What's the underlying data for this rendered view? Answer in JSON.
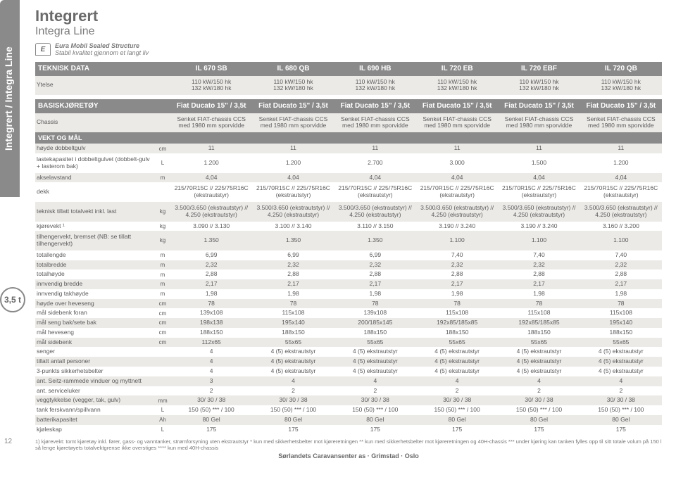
{
  "sideTab": "Integrert / Integra Line",
  "pageNumber": "12",
  "title": "Integrert",
  "subtitle": "Integra Line",
  "logoLetter": "E",
  "taglineBrand": "Eura Mobil Sealed Structure",
  "tagline": "Stabil kvalitet gjennom et langt liv",
  "weightBadge": "3,5 t",
  "headers": {
    "teknisk": "TEKNISK DATA",
    "models": [
      "IL 670 SB",
      "IL 680 QB",
      "IL 690 HB",
      "IL 720 EB",
      "IL 720 EBF",
      "IL 720 QB"
    ]
  },
  "rows": [
    {
      "k": "ytelse",
      "label": "Ytelse",
      "unit": "",
      "vals": [
        "110 kW/150 hk\n132 kW/180 hk",
        "110 kW/150 hk\n132 kW/180 hk",
        "110 kW/150 hk\n132 kW/180 hk",
        "110 kW/150 hk\n132 kW/180 hk",
        "110 kW/150 hk\n132 kW/180 hk",
        "110 kW/150 hk\n132 kW/180 hk"
      ],
      "class": "alt tall"
    },
    {
      "k": "sep1",
      "sep": true
    },
    {
      "k": "basis",
      "label": "BASISKJØRETØY",
      "unit": "",
      "vals": [
        "Fiat Ducato 15\" / 3,5t",
        "Fiat Ducato 15\" / 3,5t",
        "Fiat Ducato 15\" / 3,5t",
        "Fiat Ducato 15\" / 3,5t",
        "Fiat Ducato 15\" / 3,5t",
        "Fiat Ducato 15\" / 3,5t"
      ],
      "class": "hdr"
    },
    {
      "k": "chassis",
      "label": "Chassis",
      "unit": "",
      "vals": [
        "Senket FIAT-chassis CCS med 1980 mm sporvidde",
        "Senket FIAT-chassis CCS med 1980 mm sporvidde",
        "Senket FIAT-chassis CCS med 1980 mm sporvidde",
        "Senket FIAT-chassis CCS med 1980 mm sporvidde",
        "Senket FIAT-chassis CCS med 1980 mm sporvidde",
        "Senket FIAT-chassis CCS med 1980 mm sporvidde"
      ],
      "class": "alt tall"
    },
    {
      "k": "vekt",
      "label": "VEKT OG MÅL",
      "section": true
    },
    {
      "k": "hoyde_dg",
      "label": "høyde dobbeltgulv",
      "unit": "cm",
      "vals": [
        "11",
        "11",
        "11",
        "11",
        "11",
        "11"
      ],
      "class": "alt"
    },
    {
      "k": "lastekap",
      "label": "lastekapasitet i dobbeltgulvet (dobbelt-gulv + lasterom bak)",
      "unit": "L",
      "vals": [
        "1.200",
        "1.200",
        "2.700",
        "3.000",
        "1.500",
        "1.200"
      ],
      "class": "plain tall"
    },
    {
      "k": "aksel",
      "label": "akselavstand",
      "unit": "m",
      "vals": [
        "4,04",
        "4,04",
        "4,04",
        "4,04",
        "4,04",
        "4,04"
      ],
      "class": "alt"
    },
    {
      "k": "dekk",
      "label": "dekk",
      "unit": "",
      "vals": [
        "215/70R15C // 225/75R16C (ekstrautstyr)",
        "215/70R15C // 225/75R16C (ekstrautstyr)",
        "215/70R15C // 225/75R16C (ekstrautstyr)",
        "215/70R15C // 225/75R16C (ekstrautstyr)",
        "215/70R15C // 225/75R16C (ekstrautstyr)",
        "215/70R15C // 225/75R16C (ekstrautstyr)"
      ],
      "class": "plain tall"
    },
    {
      "k": "tekn_tot",
      "label": "teknisk tillatt totalvekt inkl. last",
      "unit": "kg",
      "vals": [
        "3.500/3.650 (ekstrautstyr) // 4.250 (ekstrautstyr)",
        "3.500/3.650 (ekstrautstyr) // 4.250 (ekstrautstyr)",
        "3.500/3.650 (ekstrautstyr) // 4.250 (ekstrautstyr)",
        "3.500/3.650 (ekstrautstyr) // 4.250 (ekstrautstyr)",
        "3.500/3.650 (ekstrautstyr) // 4.250 (ekstrautstyr)",
        "3.500/3.650 (ekstrautstyr) // 4.250 (ekstrautstyr)"
      ],
      "class": "alt tall"
    },
    {
      "k": "kjorevekt",
      "label": "kjørevekt ¹",
      "unit": "kg",
      "vals": [
        "3.090 // 3.130",
        "3.100 // 3.140",
        "3.110 // 3.150",
        "3.190 // 3.240",
        "3.190 // 3.240",
        "3.160 // 3.200"
      ],
      "class": "plain"
    },
    {
      "k": "tilh",
      "label": "tilhengervekt, bremset (NB: se tillatt tilhengervekt)",
      "unit": "kg",
      "vals": [
        "1.350",
        "1.350",
        "1.350",
        "1.100",
        "1.100",
        "1.100"
      ],
      "class": "alt tall"
    },
    {
      "k": "totlen",
      "label": "totallengde",
      "unit": "m",
      "vals": [
        "6,99",
        "6,99",
        "6,99",
        "7,40",
        "7,40",
        "7,40"
      ],
      "class": "plain"
    },
    {
      "k": "totbre",
      "label": "totalbredde",
      "unit": "m",
      "vals": [
        "2,32",
        "2,32",
        "2,32",
        "2,32",
        "2,32",
        "2,32"
      ],
      "class": "alt"
    },
    {
      "k": "tothoy",
      "label": "totalhøyde",
      "unit": "m",
      "vals": [
        "2,88",
        "2,88",
        "2,88",
        "2,88",
        "2,88",
        "2,88"
      ],
      "class": "plain"
    },
    {
      "k": "innbre",
      "label": "innvendig bredde",
      "unit": "m",
      "vals": [
        "2,17",
        "2,17",
        "2,17",
        "2,17",
        "2,17",
        "2,17"
      ],
      "class": "alt"
    },
    {
      "k": "inntak",
      "label": "innvendig takhøyde",
      "unit": "m",
      "vals": [
        "1,98",
        "1,98",
        "1,98",
        "1,98",
        "1,98",
        "1,98"
      ],
      "class": "plain"
    },
    {
      "k": "heveseng",
      "label": "høyde over heveseng",
      "unit": "cm",
      "vals": [
        "78",
        "78",
        "78",
        "78",
        "78",
        "78"
      ],
      "class": "alt"
    },
    {
      "k": "sideforan",
      "label": "mål sidebenk foran",
      "unit": "cm",
      "vals": [
        "139x108",
        "115x108",
        "139x108",
        "115x108",
        "115x108",
        "115x108"
      ],
      "class": "plain"
    },
    {
      "k": "sengbak",
      "label": "mål seng bak/sete bak",
      "unit": "cm",
      "vals": [
        "198x138",
        "195x140",
        "200/185x145",
        "192x85/185x85",
        "192x85/185x85",
        "195x140"
      ],
      "class": "alt"
    },
    {
      "k": "heveseng2",
      "label": "mål heveseng",
      "unit": "cm",
      "vals": [
        "188x150",
        "188x150",
        "188x150",
        "188x150",
        "188x150",
        "188x150"
      ],
      "class": "plain"
    },
    {
      "k": "sidebenk",
      "label": "mål sidebenk",
      "unit": "cm",
      "vals": [
        "112x65",
        "55x65",
        "55x65",
        "55x65",
        "55x65",
        "55x65"
      ],
      "class": "alt"
    },
    {
      "k": "senger",
      "label": "senger",
      "unit": "",
      "vals": [
        "4",
        "4 (5) ekstrautstyr",
        "4 (5) ekstrautstyr",
        "4 (5) ekstrautstyr",
        "4 (5) ekstrautstyr",
        "4 (5) ekstrautstyr"
      ],
      "class": "plain"
    },
    {
      "k": "pers",
      "label": "tillatt antall personer",
      "unit": "",
      "vals": [
        "4",
        "4 (5) ekstrautstyr",
        "4 (5) ekstrautstyr",
        "4 (5) ekstrautstyr",
        "4 (5) ekstrautstyr",
        "4 (5) ekstrautstyr"
      ],
      "class": "alt"
    },
    {
      "k": "3pkt",
      "label": "3-punkts sikkerhetsbelter",
      "unit": "",
      "vals": [
        "4",
        "4 (5) ekstrautstyr",
        "4 (5) ekstrautstyr",
        "4 (5) ekstrautstyr",
        "4 (5) ekstrautstyr",
        "4 (5) ekstrautstyr"
      ],
      "class": "plain"
    },
    {
      "k": "seitz",
      "label": "ant. Seitz-rammede vinduer og myttnett",
      "unit": "",
      "vals": [
        "3",
        "4",
        "4",
        "4",
        "4",
        "4"
      ],
      "class": "alt"
    },
    {
      "k": "serv",
      "label": "ant. serviceluker",
      "unit": "",
      "vals": [
        "2",
        "2",
        "2",
        "2",
        "2",
        "2"
      ],
      "class": "plain"
    },
    {
      "k": "vegg",
      "label": "veggtykkelse (vegger, tak, gulv)",
      "unit": "mm",
      "vals": [
        "30/ 30 / 38",
        "30/ 30 / 38",
        "30/ 30 / 38",
        "30/ 30 / 38",
        "30/ 30 / 38",
        "30/ 30 / 38"
      ],
      "class": "alt"
    },
    {
      "k": "tank",
      "label": "tank ferskvann/spillvann",
      "unit": "L",
      "vals": [
        "150 (50) *** / 100",
        "150 (50) *** / 100",
        "150 (50) *** / 100",
        "150 (50) *** / 100",
        "150 (50) *** / 100",
        "150 (50) *** / 100"
      ],
      "class": "plain"
    },
    {
      "k": "batt",
      "label": "batterikapasitet",
      "unit": "Ah",
      "vals": [
        "80 Gel",
        "80 Gel",
        "80 Gel",
        "80 Gel",
        "80 Gel",
        "80 Gel"
      ],
      "class": "alt"
    },
    {
      "k": "kjol",
      "label": "kjøleskap",
      "unit": "L",
      "vals": [
        "175",
        "175",
        "175",
        "175",
        "175",
        "175"
      ],
      "class": "plain"
    }
  ],
  "footnote": "1) kjørevekt: tomt kjøretøy inkl. fører, gass- og vanntanker, strømforsyning uten ekstrautstyr  * kun med sikkerhetsbelter mot kjøreretningen  ** kun med sikkerhetsbelter mot kjøreretningen og 40H-chassis  *** under kjøring kan tanken fylles opp til sitt totale volum på 150 l så lenge kjøretøyets totalvektgrense ikke overstiges  **** kun med 40H-chassis",
  "footer": "Sørlandets Caravansenter as · Grimstad · Oslo"
}
